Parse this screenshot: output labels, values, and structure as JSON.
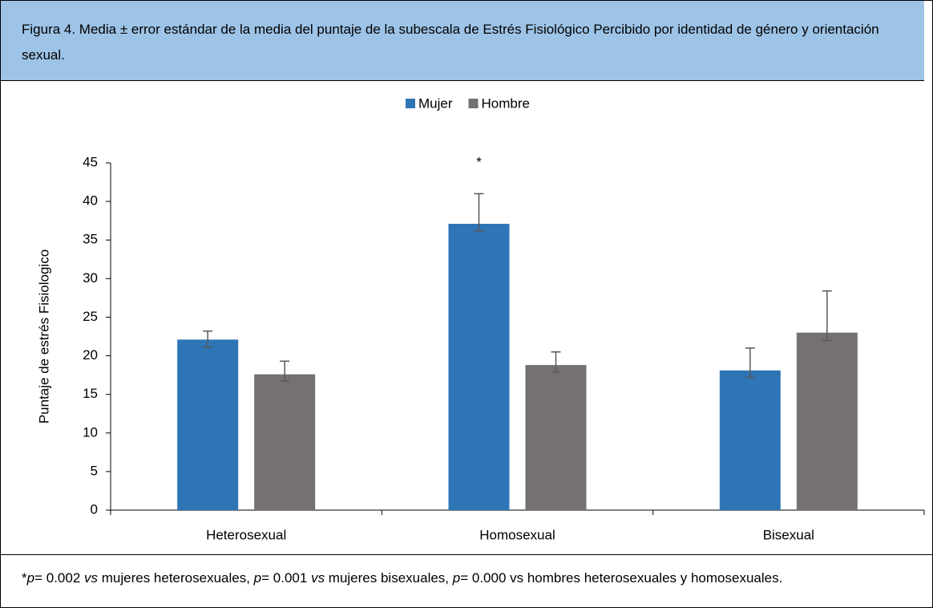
{
  "caption": "Figura 4. Media ± error estándar de la media del puntaje de la subescala de Estrés Fisiológico Percibido por identidad de género y orientación sexual.",
  "chart_data": {
    "type": "bar",
    "y_label": "Puntaje de estrés Fisiologico",
    "categories": [
      "Heterosexual",
      "Homosexual",
      "Bisexual"
    ],
    "series": [
      {
        "name": "Mujer",
        "color": "#2e75b6",
        "values": [
          22.1,
          37.1,
          18.1
        ],
        "errors_plus": [
          1.1,
          3.9,
          2.9
        ],
        "errors_minus": [
          1.0,
          0.9,
          0.9
        ]
      },
      {
        "name": "Hombre",
        "color": "#767171",
        "values": [
          17.6,
          18.8,
          23.0
        ],
        "errors_plus": [
          1.7,
          1.7,
          5.4
        ],
        "errors_minus": [
          0.9,
          0.9,
          1.0
        ]
      }
    ],
    "annotations": [
      {
        "text": "*",
        "category": 1,
        "series": 0
      }
    ],
    "ylim": [
      0,
      45
    ],
    "yticks": [
      0,
      5,
      10,
      15,
      20,
      25,
      30,
      35,
      40,
      45
    ],
    "grid": false,
    "legend": "top"
  },
  "note": [
    {
      "text": "*",
      "italic": false
    },
    {
      "text": "p",
      "italic": true
    },
    {
      "text": "= 0.002 ",
      "italic": false
    },
    {
      "text": "vs",
      "italic": true
    },
    {
      "text": " mujeres heterosexuales, ",
      "italic": false
    },
    {
      "text": "p",
      "italic": true
    },
    {
      "text": "= 0.001 ",
      "italic": false
    },
    {
      "text": "vs",
      "italic": true
    },
    {
      "text": " mujeres bisexuales, ",
      "italic": false
    },
    {
      "text": "p",
      "italic": true
    },
    {
      "text": "= 0.000 vs hombres heterosexuales y homosexuales.",
      "italic": false
    }
  ]
}
